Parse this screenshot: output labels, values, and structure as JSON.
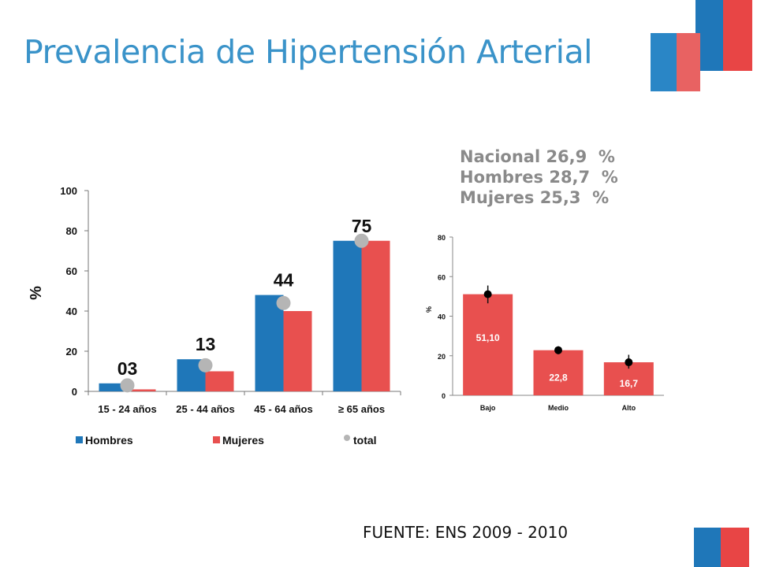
{
  "slide": {
    "title": "Prevalencia de Hipertensión Arterial",
    "source": "FUENTE: ENS 2009 - 2010",
    "summary": [
      "Nacional 26,9  %",
      "Hombres 28,7  %",
      "Mujeres 25,3  %"
    ]
  },
  "colors": {
    "hombres": "#1f77b9",
    "mujeres": "#e8504f",
    "total": "#b5b5b5",
    "title": "#3a93c9",
    "summary": "#8a8a8a"
  },
  "chart_data": [
    {
      "type": "bar",
      "categories": [
        "15 - 24 años",
        "25 - 44 años",
        "45 - 64 años",
        "≥ 65 años"
      ],
      "series": [
        {
          "name": "Hombres",
          "values": [
            4,
            16,
            48,
            75
          ]
        },
        {
          "name": "Mujeres",
          "values": [
            1,
            10,
            40,
            75
          ]
        }
      ],
      "total": {
        "name": "total",
        "values": [
          3,
          13,
          44,
          75
        ],
        "labels": [
          "03",
          "13",
          "44",
          "75"
        ]
      },
      "ylabel": "%",
      "ylim": [
        0,
        100
      ],
      "yticks": [
        0,
        20,
        40,
        60,
        80,
        100
      ],
      "legend": [
        "Hombres",
        "Mujeres",
        "total"
      ],
      "legend_position": "bottom"
    },
    {
      "type": "bar",
      "categories": [
        "Bajo",
        "Medio",
        "Alto"
      ],
      "values": [
        51.1,
        22.8,
        16.7
      ],
      "labels": [
        "51,10",
        "22,8",
        "16,7"
      ],
      "error_low": [
        46.5,
        20.8,
        13.5
      ],
      "error_high": [
        55.5,
        24.8,
        20.5
      ],
      "ylabel": "%",
      "ylim": [
        0,
        80
      ],
      "yticks": [
        0,
        20,
        40,
        60,
        80
      ]
    }
  ]
}
